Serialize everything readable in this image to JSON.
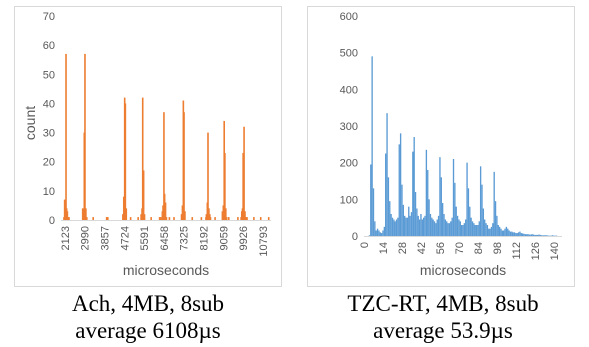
{
  "chart_data": [
    {
      "type": "bar",
      "title": "",
      "xlabel": "microseconds",
      "ylabel": "count",
      "ylim": [
        0,
        70
      ],
      "yticks": [
        0,
        10,
        20,
        30,
        40,
        50,
        60,
        70
      ],
      "xlim": [
        1950,
        11150
      ],
      "xtick_labels": [
        "2123",
        "2990",
        "3857",
        "4724",
        "5591",
        "6458",
        "7325",
        "8192",
        "9059",
        "9926",
        "10793"
      ],
      "xtick_values": [
        2123,
        2990,
        3857,
        4724,
        5591,
        6458,
        7325,
        8192,
        9059,
        9926,
        10793
      ],
      "color": "#ed7d31",
      "series": [
        {
          "x": [
            2080,
            2110,
            2140,
            2170,
            2200,
            2230,
            2260,
            2300,
            2900,
            2940,
            2970,
            3000,
            3040,
            3080,
            3360,
            3950,
            4000,
            4660,
            4700,
            4740,
            4770,
            4810,
            5000,
            5330,
            5460,
            5500,
            5530,
            5570,
            5610,
            5900,
            6270,
            6320,
            6390,
            6420,
            6460,
            6490,
            6530,
            6570,
            6700,
            6900,
            7230,
            7270,
            7310,
            7340,
            7380,
            7700,
            8100,
            8300,
            8320,
            8360,
            8390,
            8430,
            8470,
            8500,
            8700,
            9020,
            9060,
            9100,
            9130,
            9170,
            9210,
            9300,
            9700,
            9840,
            9870,
            9900,
            9930,
            9970,
            10010,
            10050,
            10100,
            10400,
            10700,
            11050
          ],
          "values": [
            1,
            7,
            6,
            57,
            4,
            3,
            1,
            1,
            4,
            3,
            30,
            57,
            4,
            1,
            1,
            1,
            1,
            2,
            8,
            42,
            40,
            4,
            1,
            1,
            2,
            4,
            42,
            17,
            2,
            1,
            1,
            1,
            3,
            5,
            37,
            9,
            6,
            1,
            1,
            1,
            2,
            5,
            41,
            37,
            3,
            1,
            1,
            1,
            2,
            6,
            30,
            4,
            2,
            1,
            1,
            3,
            5,
            34,
            23,
            4,
            1,
            1,
            1,
            1,
            3,
            4,
            23,
            32,
            3,
            1,
            1,
            1,
            1,
            1
          ]
        }
      ]
    },
    {
      "type": "bar",
      "title": "",
      "xlabel": "microseconds",
      "ylabel": "",
      "ylim": [
        0,
        600
      ],
      "yticks": [
        0,
        100,
        200,
        300,
        400,
        500,
        600
      ],
      "xlim": [
        0,
        146
      ],
      "xtick_labels": [
        "0",
        "14",
        "28",
        "42",
        "56",
        "70",
        "84",
        "98",
        "112",
        "126",
        "140"
      ],
      "xtick_values": [
        0,
        14,
        28,
        42,
        56,
        70,
        84,
        98,
        112,
        126,
        140
      ],
      "color": "#5b9bd5",
      "series": [
        {
          "x": [
            4,
            5,
            6,
            7,
            8,
            9,
            10,
            11,
            12,
            13,
            14,
            15,
            16,
            17,
            18,
            19,
            20,
            21,
            22,
            23,
            24,
            25,
            26,
            27,
            28,
            29,
            30,
            31,
            32,
            33,
            34,
            35,
            36,
            37,
            38,
            39,
            40,
            41,
            42,
            43,
            44,
            45,
            46,
            47,
            48,
            49,
            50,
            51,
            52,
            53,
            54,
            55,
            56,
            57,
            58,
            59,
            60,
            61,
            62,
            63,
            64,
            65,
            66,
            67,
            68,
            69,
            70,
            71,
            72,
            73,
            74,
            75,
            76,
            77,
            78,
            79,
            80,
            81,
            82,
            83,
            84,
            85,
            86,
            87,
            88,
            89,
            90,
            91,
            92,
            93,
            94,
            95,
            96,
            97,
            98,
            99,
            100,
            101,
            102,
            103,
            104,
            105,
            106,
            107,
            108,
            109,
            110,
            111,
            112,
            113,
            114,
            115,
            116,
            117,
            118,
            119,
            120,
            121,
            122,
            123,
            124,
            125,
            126,
            127,
            128,
            129,
            130,
            131,
            132,
            133,
            134,
            135,
            136,
            137,
            138,
            139,
            140,
            141,
            142
          ],
          "values": [
            2,
            195,
            490,
            130,
            40,
            15,
            20,
            15,
            10,
            8,
            15,
            25,
            225,
            335,
            160,
            95,
            60,
            50,
            45,
            40,
            45,
            50,
            250,
            280,
            140,
            85,
            55,
            50,
            50,
            80,
            55,
            65,
            230,
            270,
            120,
            75,
            55,
            45,
            60,
            45,
            50,
            55,
            235,
            180,
            100,
            60,
            50,
            45,
            40,
            35,
            45,
            55,
            215,
            160,
            90,
            60,
            45,
            40,
            35,
            35,
            40,
            50,
            210,
            145,
            80,
            55,
            45,
            40,
            30,
            30,
            35,
            45,
            200,
            130,
            80,
            50,
            40,
            35,
            30,
            30,
            30,
            40,
            190,
            140,
            75,
            45,
            35,
            30,
            20,
            20,
            25,
            35,
            175,
            95,
            55,
            30,
            25,
            20,
            15,
            15,
            20,
            25,
            20,
            15,
            12,
            12,
            10,
            10,
            8,
            8,
            10,
            12,
            8,
            7,
            6,
            5,
            5,
            5,
            4,
            4,
            5,
            4,
            3,
            3,
            3,
            4,
            3,
            2,
            2,
            2,
            2,
            2,
            1,
            1,
            1,
            2,
            1,
            1,
            1
          ]
        }
      ]
    }
  ],
  "captions": {
    "left": {
      "line1": "Ach, 4MB, 8sub",
      "line2": "average 6108µs"
    },
    "right": {
      "line1": "TZC-RT, 4MB, 8sub",
      "line2": "average 53.9µs"
    }
  }
}
